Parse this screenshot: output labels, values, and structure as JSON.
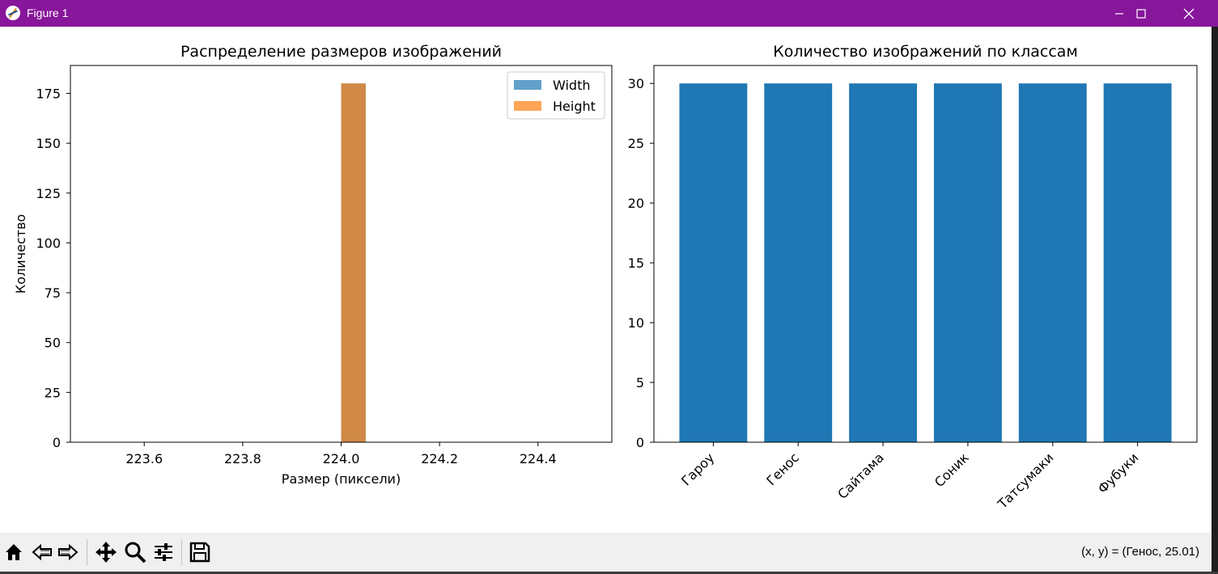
{
  "window": {
    "title": "Figure 1",
    "controls": [
      "minimize",
      "maximize",
      "close"
    ]
  },
  "toolbar": {
    "buttons": [
      {
        "name": "home",
        "icon": "home-icon"
      },
      {
        "name": "back",
        "icon": "back-arrow-icon"
      },
      {
        "name": "forward",
        "icon": "forward-arrow-icon"
      },
      {
        "name": "pan",
        "icon": "move-icon"
      },
      {
        "name": "zoom",
        "icon": "zoom-icon"
      },
      {
        "name": "configure-subplots",
        "icon": "sliders-icon"
      },
      {
        "name": "save",
        "icon": "save-icon"
      }
    ],
    "status": "(x, y) = (Генос, 25.01)"
  },
  "chart_data": [
    {
      "type": "bar",
      "title": "Распределение размеров изображений",
      "xlabel": "Размер (пиксели)",
      "ylabel": "Количество",
      "xlim": [
        223.45,
        224.55
      ],
      "ylim": [
        0,
        189
      ],
      "xticks": [
        223.6,
        223.8,
        224.0,
        224.2,
        224.4
      ],
      "xtick_labels": [
        "223.6",
        "223.8",
        "224.0",
        "224.2",
        "224.4"
      ],
      "yticks": [
        0,
        25,
        50,
        75,
        100,
        125,
        150,
        175
      ],
      "ytick_labels": [
        "0",
        "25",
        "50",
        "75",
        "100",
        "125",
        "150",
        "175"
      ],
      "legend_position": "top-right",
      "series": [
        {
          "name": "Width",
          "color": "#1f77b4",
          "alpha": 0.7,
          "bin": [
            224.0,
            224.05
          ],
          "value": 180
        },
        {
          "name": "Height",
          "color": "#ff7f0e",
          "alpha": 0.7,
          "bin": [
            224.0,
            224.05
          ],
          "value": 180
        }
      ]
    },
    {
      "type": "bar",
      "title": "Количество изображений по классам",
      "categories": [
        "Гароу",
        "Генос",
        "Сайтама",
        "Соник",
        "Татсумаки",
        "Фубуки"
      ],
      "values": [
        30,
        30,
        30,
        30,
        30,
        30
      ],
      "color": "#1f77b4",
      "ylim": [
        0,
        31.5
      ],
      "yticks": [
        0,
        5,
        10,
        15,
        20,
        25,
        30
      ],
      "ytick_labels": [
        "0",
        "5",
        "10",
        "15",
        "20",
        "25",
        "30"
      ],
      "xtick_rotation": 45
    }
  ]
}
